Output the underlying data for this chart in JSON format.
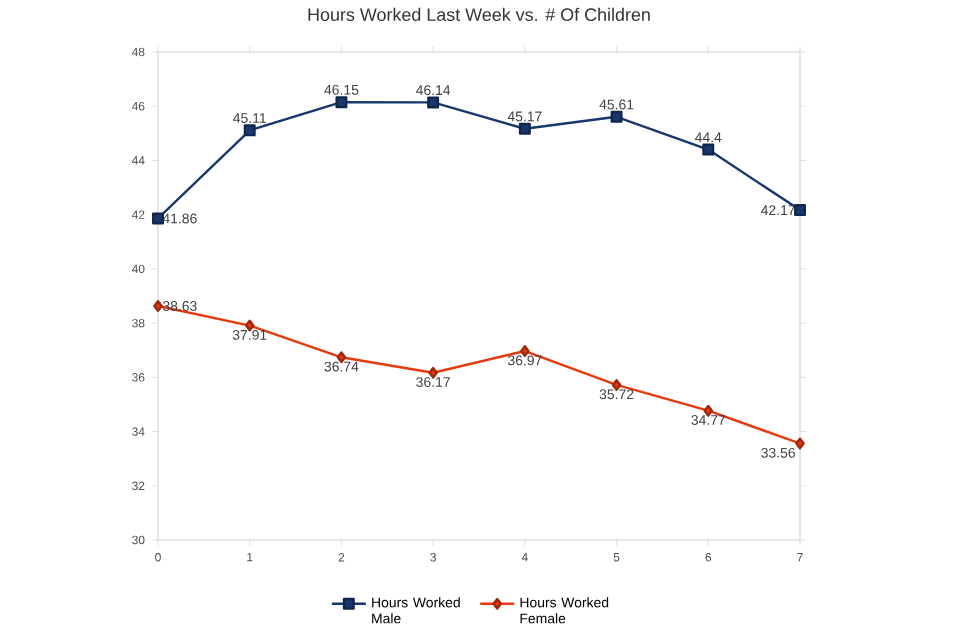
{
  "chart_data": {
    "type": "line",
    "title": "Hours Worked Last Week vs. # Of Children",
    "x": [
      0,
      1,
      2,
      3,
      4,
      5,
      6,
      7
    ],
    "series": [
      {
        "name": "Hours Worked Male",
        "color": "#17376e",
        "marker": "square",
        "values": [
          41.86,
          45.11,
          46.15,
          46.14,
          45.17,
          45.61,
          44.4,
          42.17
        ]
      },
      {
        "name": "Hours Worked Female",
        "color": "#e8380d",
        "marker": "diamond",
        "values": [
          38.63,
          37.91,
          36.74,
          36.17,
          36.97,
          35.72,
          34.77,
          33.56
        ]
      }
    ],
    "xlim": [
      0,
      7
    ],
    "xticks": [
      0,
      1,
      2,
      3,
      4,
      5,
      6,
      7
    ],
    "ylim": [
      30,
      48
    ],
    "yticks": [
      30,
      32,
      34,
      36,
      38,
      40,
      42,
      44,
      46,
      48
    ],
    "grid": false,
    "legend": "bottom",
    "data_labels": true,
    "line_style": "solid"
  }
}
